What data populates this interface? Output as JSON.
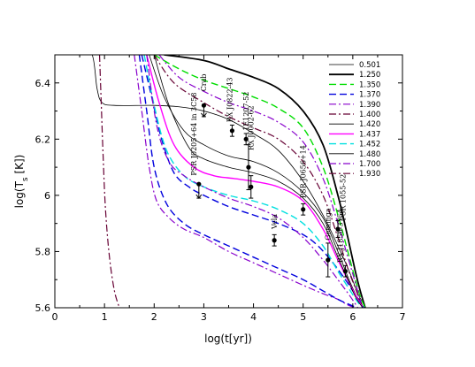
{
  "chart_data": {
    "type": "line",
    "xlabel": "log(t[yr])",
    "ylabel": "log(T_s [K])",
    "xlim": [
      0,
      7
    ],
    "ylim": [
      5.6,
      6.5
    ],
    "xticks": [
      "0",
      "1",
      "2",
      "3",
      "4",
      "5",
      "6",
      "7"
    ],
    "yticks": [
      "5.6",
      "5.8",
      "6",
      "6.2",
      "6.4"
    ],
    "legend_position": "top-right",
    "series": [
      {
        "name": "0.501",
        "color": "#000000",
        "dash": "solid",
        "width": 0.8,
        "x": [
          0.5,
          0.75,
          0.85,
          0.95,
          1.2,
          2.0,
          2.5,
          3.0,
          3.5,
          4.0,
          4.5,
          5.0,
          5.4,
          5.7,
          5.95,
          6.1,
          6.2,
          6.25
        ],
        "y": [
          6.5,
          6.5,
          6.38,
          6.33,
          6.32,
          6.32,
          6.315,
          6.3,
          6.27,
          6.22,
          6.16,
          6.05,
          5.93,
          5.82,
          5.72,
          5.65,
          5.62,
          5.6
        ]
      },
      {
        "name": "1.250",
        "color": "#000000",
        "dash": "solid",
        "width": 1.8,
        "x": [
          2.2,
          3.0,
          3.5,
          4.0,
          4.5,
          5.0,
          5.4,
          5.7,
          5.9,
          6.05,
          6.15,
          6.25
        ],
        "y": [
          6.5,
          6.48,
          6.45,
          6.42,
          6.38,
          6.3,
          6.18,
          6.0,
          5.85,
          5.73,
          5.66,
          5.6
        ]
      },
      {
        "name": "1.350",
        "color": "#00dd00",
        "dash": "8,4",
        "width": 1.4,
        "x": [
          2.0,
          2.5,
          3.0,
          3.5,
          4.0,
          4.5,
          5.0,
          5.4,
          5.7,
          5.9,
          6.05,
          6.15,
          6.25
        ],
        "y": [
          6.5,
          6.45,
          6.41,
          6.38,
          6.35,
          6.31,
          6.24,
          6.1,
          5.93,
          5.8,
          5.7,
          5.64,
          5.6
        ]
      },
      {
        "name": "1.370",
        "color": "#0000dd",
        "dash": "8,4",
        "width": 1.4,
        "x": [
          1.75,
          1.95,
          2.15,
          2.4,
          2.7,
          3.0,
          3.5,
          4.0,
          4.5,
          5.0,
          5.3,
          5.6,
          5.85,
          6.0,
          6.15,
          6.22
        ],
        "y": [
          6.5,
          6.35,
          6.2,
          6.08,
          6.03,
          6.0,
          5.96,
          5.93,
          5.9,
          5.86,
          5.82,
          5.76,
          5.7,
          5.66,
          5.62,
          5.6
        ]
      },
      {
        "name": "1.390",
        "color": "#8800cc",
        "dash": "8,3,2,3",
        "width": 1.2,
        "x": [
          2.1,
          2.5,
          3.0,
          3.5,
          4.0,
          4.5,
          5.0,
          5.4,
          5.7,
          5.9,
          6.05,
          6.2
        ],
        "y": [
          6.5,
          6.42,
          6.37,
          6.33,
          6.3,
          6.26,
          6.19,
          6.06,
          5.9,
          5.78,
          5.69,
          5.6
        ]
      },
      {
        "name": "1.400",
        "color": "#660033",
        "dash": "8,3,2,3",
        "width": 1.2,
        "x": [
          2.0,
          2.4,
          3.0,
          3.5,
          4.0,
          4.5,
          5.0,
          5.4,
          5.7,
          5.9,
          6.05,
          6.2
        ],
        "y": [
          6.5,
          6.4,
          6.33,
          6.28,
          6.24,
          6.2,
          6.12,
          6.0,
          5.85,
          5.74,
          5.67,
          5.6
        ]
      },
      {
        "name": "1.420",
        "color": "#000000",
        "dash": "solid",
        "width": 0.8,
        "x": [
          1.9,
          2.2,
          2.6,
          3.0,
          3.5,
          4.0,
          4.5,
          5.0,
          5.4,
          5.7,
          5.9,
          6.05,
          6.2
        ],
        "y": [
          6.5,
          6.35,
          6.23,
          6.18,
          6.14,
          6.12,
          6.08,
          6.01,
          5.92,
          5.8,
          5.71,
          5.65,
          5.6
        ]
      },
      {
        "name": "1.437",
        "color": "#ff00ff",
        "dash": "solid",
        "width": 1.4,
        "x": [
          1.85,
          2.1,
          2.4,
          2.8,
          3.2,
          3.6,
          4.0,
          4.5,
          5.0,
          5.4,
          5.7,
          5.95,
          6.1,
          6.2
        ],
        "y": [
          6.5,
          6.33,
          6.18,
          6.1,
          6.07,
          6.06,
          6.05,
          6.03,
          5.98,
          5.88,
          5.77,
          5.68,
          5.63,
          5.6
        ]
      },
      {
        "name": "1.452",
        "color": "#00e0e0",
        "dash": "8,4",
        "width": 1.4,
        "x": [
          1.8,
          2.0,
          2.25,
          2.6,
          3.0,
          3.5,
          4.0,
          4.5,
          5.0,
          5.4,
          5.7,
          5.95,
          6.1,
          6.2
        ],
        "y": [
          6.5,
          6.32,
          6.16,
          6.07,
          6.03,
          6.0,
          5.98,
          5.95,
          5.9,
          5.82,
          5.73,
          5.66,
          5.62,
          5.6
        ]
      },
      {
        "name": "1.480",
        "color": "#000000",
        "dash": "solid",
        "width": 0.8,
        "x": [
          2.0,
          2.3,
          2.7,
          3.0,
          3.5,
          4.0,
          4.5,
          5.0,
          5.4,
          5.7,
          5.9,
          6.05,
          6.2
        ],
        "y": [
          6.5,
          6.32,
          6.17,
          6.13,
          6.1,
          6.08,
          6.05,
          5.99,
          5.9,
          5.78,
          5.7,
          5.64,
          5.6
        ]
      },
      {
        "name": "1.700",
        "color": "#8800cc",
        "dash": "8,3,2,3",
        "width": 1.2,
        "x": [
          1.6,
          1.75,
          1.9,
          2.05,
          2.3,
          2.6,
          3.0,
          3.5,
          4.0,
          4.5,
          5.0,
          5.4,
          5.7,
          5.9,
          6.05
        ],
        "y": [
          6.5,
          6.3,
          6.1,
          5.98,
          5.92,
          5.88,
          5.85,
          5.8,
          5.76,
          5.72,
          5.68,
          5.65,
          5.63,
          5.61,
          5.6
        ]
      },
      {
        "name": "1.930",
        "color": "#660033",
        "dash": "8,3,2,3",
        "width": 1.2,
        "x": [
          0.9,
          0.93,
          0.97,
          1.02,
          1.1,
          1.2,
          1.3
        ],
        "y": [
          6.5,
          6.35,
          6.15,
          5.95,
          5.78,
          5.66,
          5.6
        ]
      },
      {
        "name": "",
        "color": "#8800cc",
        "dash": "8,3,2,3",
        "width": 1.2,
        "x": [
          1.85,
          2.05,
          2.3,
          2.6,
          3.0,
          3.5,
          4.0,
          4.5,
          5.0,
          5.4,
          5.7,
          5.95,
          6.1
        ],
        "y": [
          6.5,
          6.25,
          6.12,
          6.07,
          6.03,
          5.99,
          5.96,
          5.92,
          5.85,
          5.77,
          5.7,
          5.64,
          5.6
        ]
      },
      {
        "name": "",
        "color": "#0000dd",
        "dash": "8,4",
        "width": 1.4,
        "x": [
          1.7,
          1.85,
          2.0,
          2.25,
          2.6,
          3.0,
          3.5,
          4.0,
          4.5,
          5.0,
          5.4,
          5.7,
          5.95,
          6.1
        ],
        "y": [
          6.5,
          6.3,
          6.1,
          5.97,
          5.9,
          5.86,
          5.82,
          5.78,
          5.74,
          5.7,
          5.66,
          5.63,
          5.61,
          5.6
        ]
      }
    ],
    "observations": [
      {
        "label": "Crab",
        "x": 3.0,
        "y": 6.32,
        "err_lo": 0.04,
        "err_hi": 0.0,
        "upper_limit": true,
        "label_dx": 0.05,
        "label_dy": 0.05
      },
      {
        "label": "RX J0822-43",
        "x": 3.57,
        "y": 6.23,
        "err_lo": 0.02,
        "err_hi": 0.02,
        "upper_limit": false,
        "label_dx": 0.0,
        "label_dy": 0.03
      },
      {
        "label": "1E1207-52",
        "x": 3.85,
        "y": 6.2,
        "err_lo": 0.02,
        "err_hi": 0.02,
        "upper_limit": false,
        "label_dx": 0.05,
        "label_dy": 0.03
      },
      {
        "label": "RX J0002-62",
        "x": 3.9,
        "y": 6.1,
        "err_lo": 0.08,
        "err_hi": 0.08,
        "upper_limit": false,
        "label_dx": 0.1,
        "label_dy": 0.06
      },
      {
        "label": "PSR J0205+64 in 3C58",
        "x": 2.9,
        "y": 6.04,
        "err_lo": 0.05,
        "err_hi": 0.0,
        "upper_limit": true,
        "label_dx": -0.05,
        "label_dy": 0.03
      },
      {
        "label": "",
        "x": 3.95,
        "y": 6.03,
        "err_lo": 0.04,
        "err_hi": 0.04,
        "upper_limit": false,
        "label_dx": 0,
        "label_dy": 0
      },
      {
        "label": "PSR J0656+14",
        "x": 5.0,
        "y": 5.95,
        "err_lo": 0.02,
        "err_hi": 0.02,
        "upper_limit": false,
        "label_dx": 0.05,
        "label_dy": 0.04
      },
      {
        "label": "Vela",
        "x": 4.42,
        "y": 5.84,
        "err_lo": 0.02,
        "err_hi": 0.02,
        "upper_limit": false,
        "label_dx": 0.05,
        "label_dy": 0.04
      },
      {
        "label": "Geminga",
        "x": 5.5,
        "y": 5.77,
        "err_lo": 0.06,
        "err_hi": 0.06,
        "upper_limit": false,
        "label_dx": 0.05,
        "label_dy": 0.07
      },
      {
        "label": "PSR 1055-52",
        "x": 5.7,
        "y": 5.88,
        "err_lo": 0.03,
        "err_hi": 0.03,
        "upper_limit": false,
        "label_dx": 0.15,
        "label_dy": 0.03
      },
      {
        "label": "RX J1856-3754",
        "x": 5.85,
        "y": 5.73,
        "err_lo": 0.02,
        "err_hi": 0.02,
        "upper_limit": false,
        "label_dx": -0.05,
        "label_dy": 0.03
      }
    ]
  }
}
